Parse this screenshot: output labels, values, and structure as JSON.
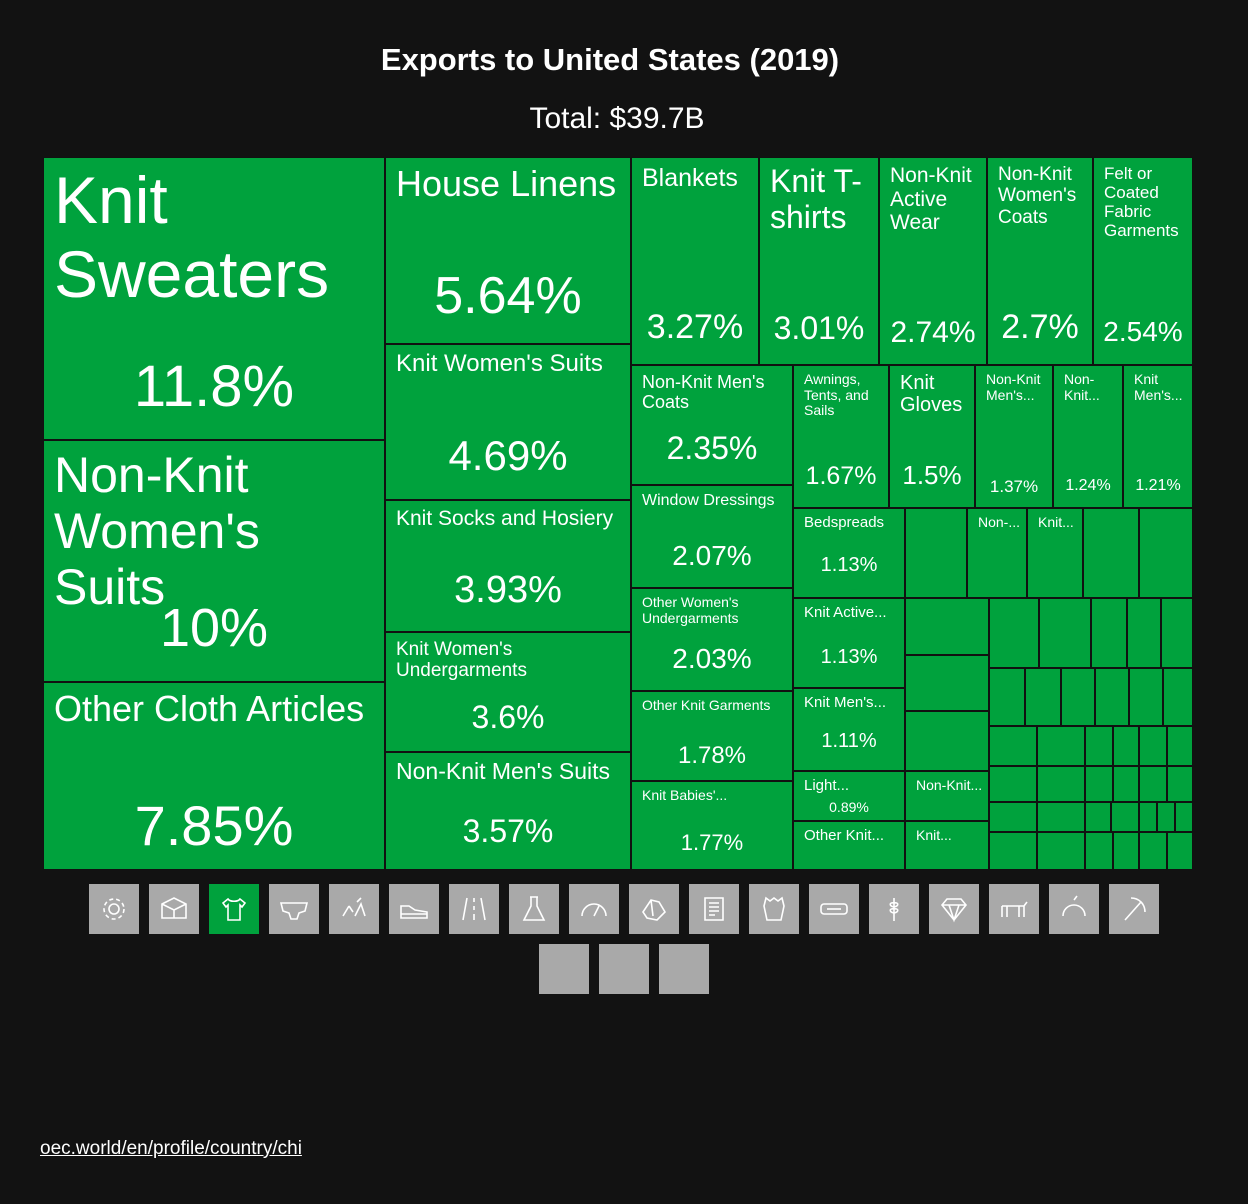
{
  "chart_data": {
    "type": "treemap",
    "title": "Exports to United States (2019)",
    "subtitle": "Total: $39.7B",
    "color": "#00a23d",
    "background": "#121212",
    "items": [
      {
        "label": "Knit Sweaters",
        "value": "11.8%"
      },
      {
        "label": "Non-Knit Women's Suits",
        "value": "10%"
      },
      {
        "label": "Other Cloth Articles",
        "value": "7.85%"
      },
      {
        "label": "House Linens",
        "value": "5.64%"
      },
      {
        "label": "Knit Women's Suits",
        "value": "4.69%"
      },
      {
        "label": "Knit Socks and Hosiery",
        "value": "3.93%"
      },
      {
        "label": "Knit Women's Undergarments",
        "value": "3.6%"
      },
      {
        "label": "Non-Knit Men's Suits",
        "value": "3.57%"
      },
      {
        "label": "Blankets",
        "value": "3.27%"
      },
      {
        "label": "Knit T-shirts",
        "value": "3.01%"
      },
      {
        "label": "Non-Knit Active Wear",
        "value": "2.74%"
      },
      {
        "label": "Non-Knit Women's Coats",
        "value": "2.7%"
      },
      {
        "label": "Felt or Coated Fabric Garments",
        "value": "2.54%"
      },
      {
        "label": "Non-Knit Men's Coats",
        "value": "2.35%"
      },
      {
        "label": "Awnings, Tents, and Sails",
        "value": "1.67%"
      },
      {
        "label": "Knit Gloves",
        "value": "1.5%"
      },
      {
        "label": "Non-Knit Men's...",
        "value": "1.37%"
      },
      {
        "label": "Non-Knit...",
        "value": "1.24%"
      },
      {
        "label": "Knit Men's...",
        "value": "1.21%"
      },
      {
        "label": "Window Dressings",
        "value": "2.07%"
      },
      {
        "label": "Other Women's Undergarments",
        "value": "2.03%"
      },
      {
        "label": "Other Knit Garments",
        "value": "1.78%"
      },
      {
        "label": "Knit Babies'...",
        "value": "1.77%"
      },
      {
        "label": "Bedspreads",
        "value": "1.13%"
      },
      {
        "label": "Knit Active...",
        "value": "1.13%"
      },
      {
        "label": "Knit Men's...",
        "value": "1.11%"
      },
      {
        "label": "Light...",
        "value": "0.89%"
      },
      {
        "label": "Other Knit...",
        "value": ""
      },
      {
        "label": "Non-...",
        "value": ""
      },
      {
        "label": "Knit...",
        "value": ""
      },
      {
        "label": "Non-Knit...",
        "value": ""
      },
      {
        "label": "Knit...",
        "value": ""
      }
    ]
  },
  "icons": [
    {
      "name": "gear-icon",
      "active": false
    },
    {
      "name": "box-icon",
      "active": false
    },
    {
      "name": "tshirt-icon",
      "active": true
    },
    {
      "name": "hide-icon",
      "active": false
    },
    {
      "name": "chemicals-icon",
      "active": false
    },
    {
      "name": "shoe-icon",
      "active": false
    },
    {
      "name": "road-icon",
      "active": false
    },
    {
      "name": "flask-icon",
      "active": false
    },
    {
      "name": "gauge-icon",
      "active": false
    },
    {
      "name": "wood-icon",
      "active": false
    },
    {
      "name": "paper-icon",
      "active": false
    },
    {
      "name": "fur-icon",
      "active": false
    },
    {
      "name": "plastic-icon",
      "active": false
    },
    {
      "name": "grain-icon",
      "active": false
    },
    {
      "name": "diamond-icon",
      "active": false
    },
    {
      "name": "animal-icon",
      "active": false
    },
    {
      "name": "fruit-icon",
      "active": false
    },
    {
      "name": "pickaxe-icon",
      "active": false
    },
    {
      "name": "blank-icon",
      "active": false
    },
    {
      "name": "blank-icon",
      "active": false
    },
    {
      "name": "blank-icon",
      "active": false
    }
  ],
  "source": {
    "link_text": "oec.world/en/profile/country/chi"
  }
}
